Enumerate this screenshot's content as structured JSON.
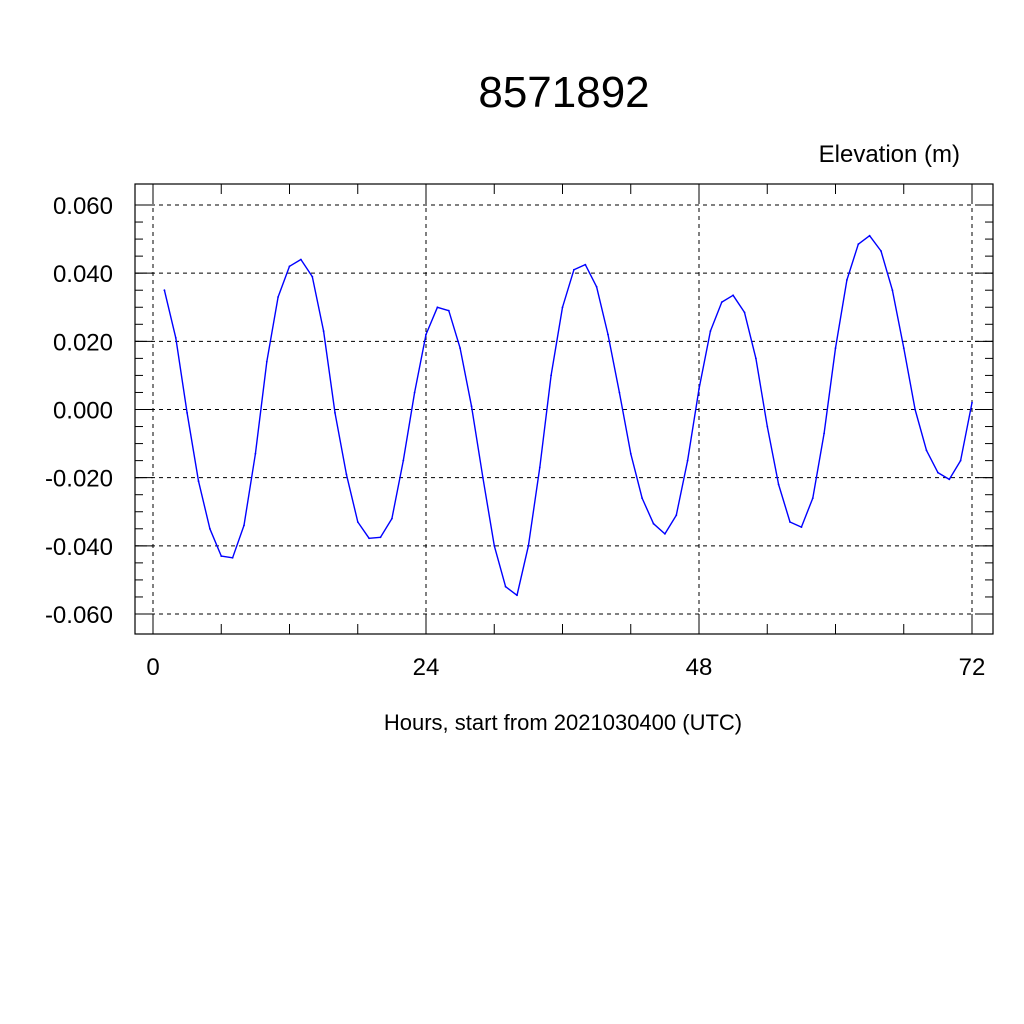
{
  "chart_data": {
    "type": "line",
    "title": "8571892",
    "subtitle": "Elevation (m)",
    "xlabel": "Hours, start from 2021030400 (UTC)",
    "ylabel": "",
    "xlim": [
      0,
      72
    ],
    "ylim": [
      -0.06,
      0.06
    ],
    "xticks": [
      0,
      24,
      48,
      72
    ],
    "xtick_labels": [
      "0",
      "24",
      "48",
      "72"
    ],
    "yticks": [
      0.06,
      0.04,
      0.02,
      0.0,
      -0.02,
      -0.04,
      -0.06
    ],
    "ytick_labels": [
      "0.060",
      "0.040",
      "0.020",
      "0.000",
      "-0.020",
      "-0.040",
      "-0.060"
    ],
    "grid": true,
    "series": [
      {
        "color": "#0000ff",
        "x": [
          1,
          2,
          3,
          4,
          5,
          6,
          7,
          8,
          9,
          10,
          11,
          12,
          13,
          14,
          15,
          16,
          17,
          18,
          19,
          20,
          21,
          22,
          23,
          24,
          25,
          26,
          27,
          28,
          29,
          30,
          31,
          32,
          33,
          34,
          35,
          36,
          37,
          38,
          39,
          40,
          41,
          42,
          43,
          44,
          45,
          46,
          47,
          48,
          49,
          50,
          51,
          52,
          53,
          54,
          55,
          56,
          57,
          58,
          59,
          60,
          61,
          62,
          63,
          64,
          65,
          66,
          67,
          68,
          69,
          70,
          71,
          72
        ],
        "y": [
          0.035,
          0.021,
          -0.001,
          -0.021,
          -0.035,
          -0.043,
          -0.0435,
          -0.034,
          -0.013,
          0.014,
          0.033,
          0.042,
          0.044,
          0.039,
          0.023,
          -0.001,
          -0.019,
          -0.033,
          -0.0378,
          -0.0375,
          -0.032,
          -0.015,
          0.005,
          0.022,
          0.03,
          0.029,
          0.018,
          0.001,
          -0.02,
          -0.04,
          -0.052,
          -0.0545,
          -0.04,
          -0.017,
          0.01,
          0.03,
          0.041,
          0.0425,
          0.036,
          0.022,
          0.005,
          -0.013,
          -0.026,
          -0.0335,
          -0.0365,
          -0.031,
          -0.015,
          0.006,
          0.023,
          0.0315,
          0.0335,
          0.0285,
          0.015,
          -0.005,
          -0.022,
          -0.033,
          -0.0345,
          -0.026,
          -0.007,
          0.018,
          0.038,
          0.0485,
          0.051,
          0.0465,
          0.035,
          0.018,
          0.0,
          -0.012,
          -0.0185,
          -0.0205,
          -0.015,
          0.002
        ]
      }
    ]
  }
}
